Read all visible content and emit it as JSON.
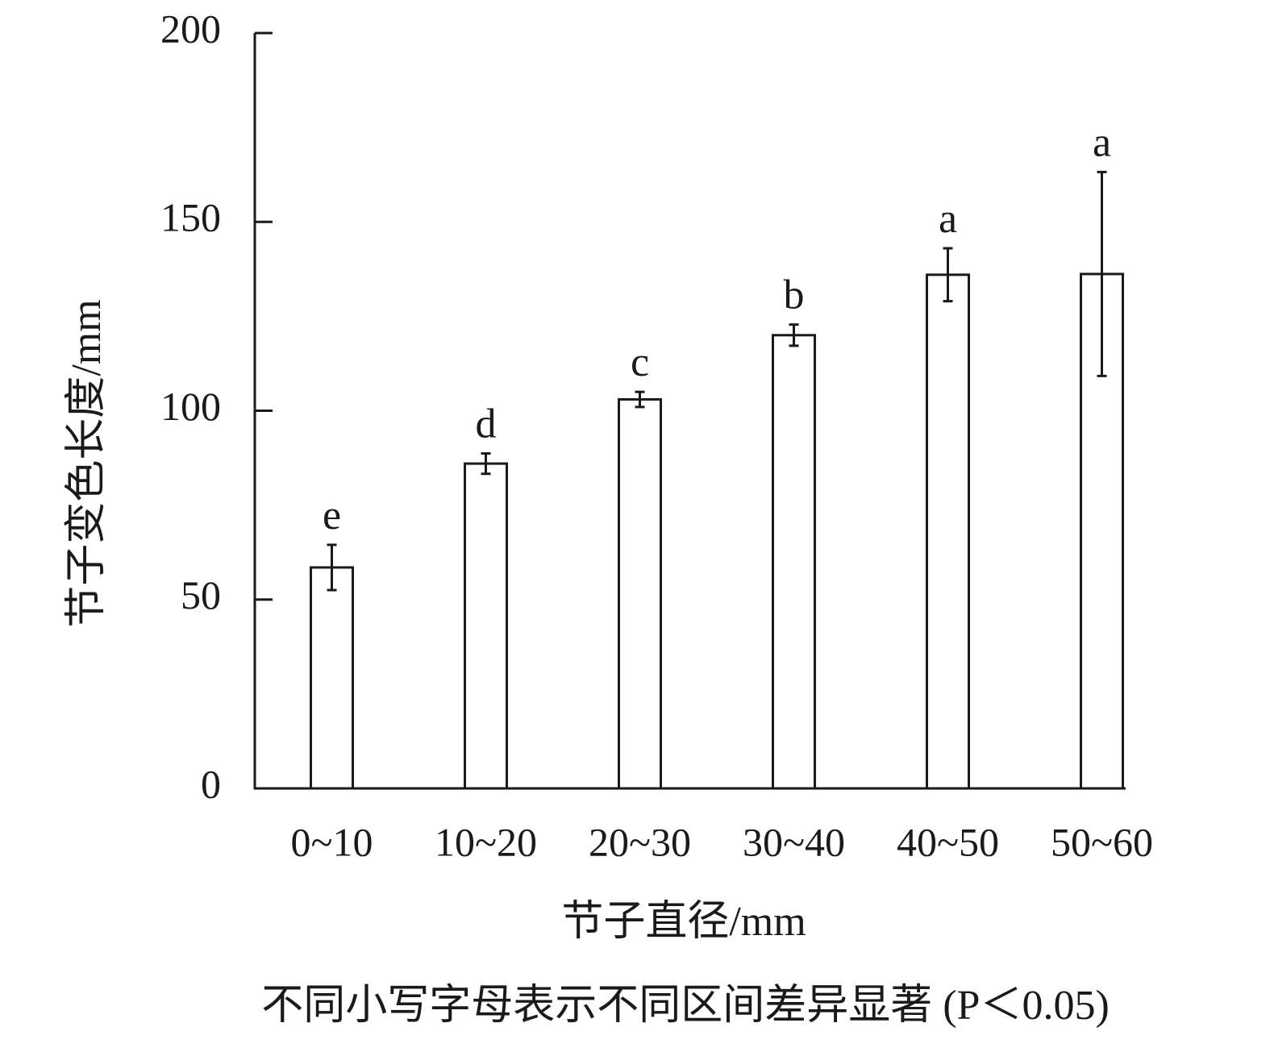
{
  "chart_data": {
    "type": "bar",
    "x_label": "节子直径/mm",
    "y_label": "节子变色长度/mm",
    "footnote": "不同小写字母表示不同区间差异显著 (P＜0.05)",
    "categories": [
      "0~10",
      "10~20",
      "20~30",
      "30~40",
      "40~50",
      "50~60"
    ],
    "values": [
      58.5,
      86,
      103,
      120,
      136,
      136.2
    ],
    "errors": [
      6,
      2.7,
      2,
      2.8,
      7,
      27
    ],
    "annotations": [
      "e",
      "d",
      "c",
      "b",
      "a",
      "a"
    ],
    "color": "#ffffff",
    "ylim": [
      0,
      200
    ],
    "yticks": [
      0,
      50,
      100,
      150,
      200
    ]
  }
}
